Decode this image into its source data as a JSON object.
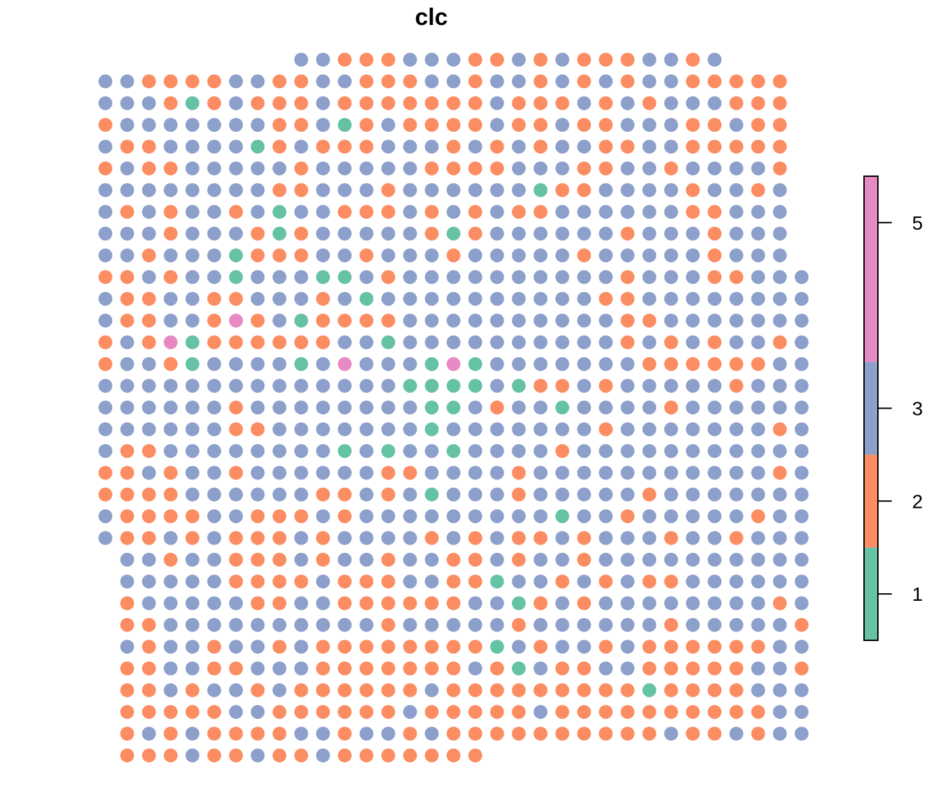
{
  "chart_data": {
    "type": "scatter",
    "title": "clc",
    "xlabel": "",
    "ylabel": "",
    "legend": {
      "kind": "colorbar",
      "placement": "right",
      "ticks": [
        1,
        2,
        3,
        5
      ],
      "range": [
        0.5,
        5.5
      ],
      "blocks": [
        {
          "from": 0.5,
          "to": 1.5,
          "color": "#66C2A5"
        },
        {
          "from": 1.5,
          "to": 2.5,
          "color": "#FC8D62"
        },
        {
          "from": 2.5,
          "to": 3.5,
          "color": "#8DA0CB"
        },
        {
          "from": 3.5,
          "to": 5.5,
          "color": "#E78AC3"
        }
      ]
    },
    "colors": {
      "1": "#66C2A5",
      "2": "#FC8D62",
      "3": "#8DA0CB",
      "5": "#E78AC3"
    },
    "grid": {
      "columns": 32,
      "rows": 33
    },
    "rows": [
      {
        "start": 9,
        "values": "33222333223232223323"
      },
      {
        "start": 0,
        "values": "33222233223322233233232323322222"
      },
      {
        "start": 0,
        "values": "33321232223222222232223232333222"
      },
      {
        "start": 0,
        "values": "23333333223123222232232233322322"
      },
      {
        "start": 0,
        "values": "32233331232223332323233223322222"
      },
      {
        "start": 0,
        "values": "23223333323333322223332233233332"
      },
      {
        "start": 0,
        "values": "33333333223332333333122333323323"
      },
      {
        "start": 0,
        "values": "32323323133222323232233333322333"
      },
      {
        "start": 0,
        "values": "33323332123333321233333323332333"
      },
      {
        "start": 0,
        "values": "33233312223323332333332333332333"
      },
      {
        "start": 0,
        "values": "223233133311323333333333233322333"
      },
      {
        "start": 0,
        "values": "322332233323133333333332233333333"
      },
      {
        "start": 0,
        "values": "322332523122223333333333223333333"
      },
      {
        "start": 0,
        "values": "232512222223313333333333232323323"
      },
      {
        "start": 0,
        "values": "233213333135333151333333322222233"
      },
      {
        "start": 0,
        "values": "333333333333331111312232333332333"
      },
      {
        "start": 0,
        "values": "333333233333333113233133332333333"
      },
      {
        "start": 0,
        "values": "333333223333333133333332333333323"
      },
      {
        "start": 0,
        "values": "322333333331313313333233333333333"
      },
      {
        "start": 0,
        "values": "223233233333322333323333333333323"
      },
      {
        "start": 0,
        "values": "222233333322323133323333323333333"
      },
      {
        "start": 0,
        "values": "322223322232333333333133233333233"
      },
      {
        "start": 0,
        "values": "322323222323333232322323332332333"
      },
      {
        "start": 1,
        "values": "33233222323323322323323333333333"
      },
      {
        "start": 1,
        "values": "33333222232223322133232322333333"
      },
      {
        "start": 1,
        "values": "23333322332222223312323333333323"
      },
      {
        "start": 1,
        "values": "22333333333323333323333332333332"
      },
      {
        "start": 1,
        "values": "32332332322222222132332322222233"
      },
      {
        "start": 1,
        "values": "22332233322222223213223322222332"
      },
      {
        "start": 1,
        "values": "22323323222222322222222212222333"
      },
      {
        "start": 1,
        "values": "22222332222223222223222222222233"
      },
      {
        "start": 1,
        "values": "23232222332332322222222223223233"
      },
      {
        "start": 1,
        "values": "22232232232222222"
      }
    ]
  }
}
